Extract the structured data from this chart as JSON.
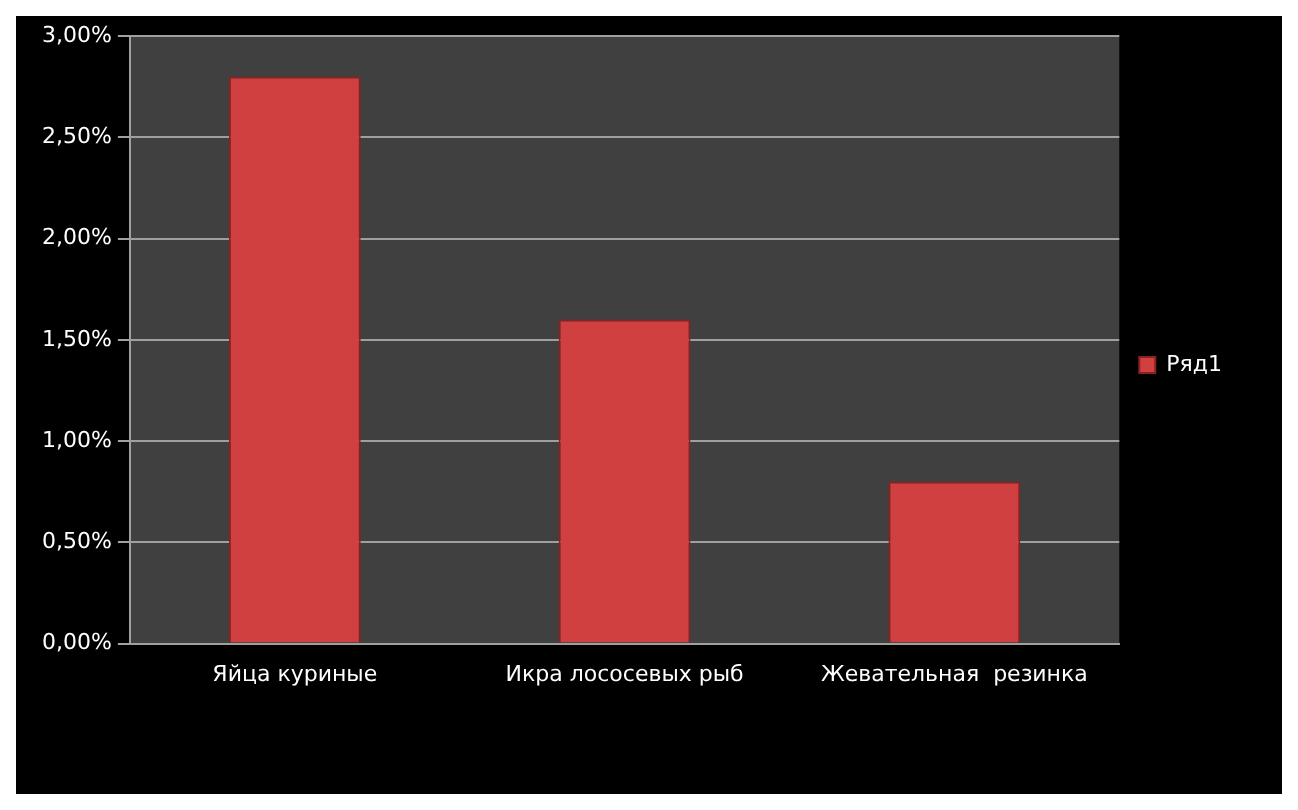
{
  "chart_data": {
    "type": "bar",
    "categories": [
      "Яйца куриные",
      "Икра лососевых рыб",
      "Жевательная  резинка"
    ],
    "series": [
      {
        "name": "Ряд1",
        "color": "#d04040",
        "values": [
          2.8,
          1.6,
          0.8
        ]
      }
    ],
    "ylim": [
      0,
      3
    ],
    "yticks": [
      {
        "value": 0,
        "label": "0,00%"
      },
      {
        "value": 0.5,
        "label": "0,50%"
      },
      {
        "value": 1,
        "label": "1,00%"
      },
      {
        "value": 1.5,
        "label": "1,50%"
      },
      {
        "value": 2,
        "label": "2,00%"
      },
      {
        "value": 2.5,
        "label": "2,50%"
      },
      {
        "value": 3,
        "label": "3,00%"
      }
    ],
    "grid": "y",
    "legend": "right"
  }
}
